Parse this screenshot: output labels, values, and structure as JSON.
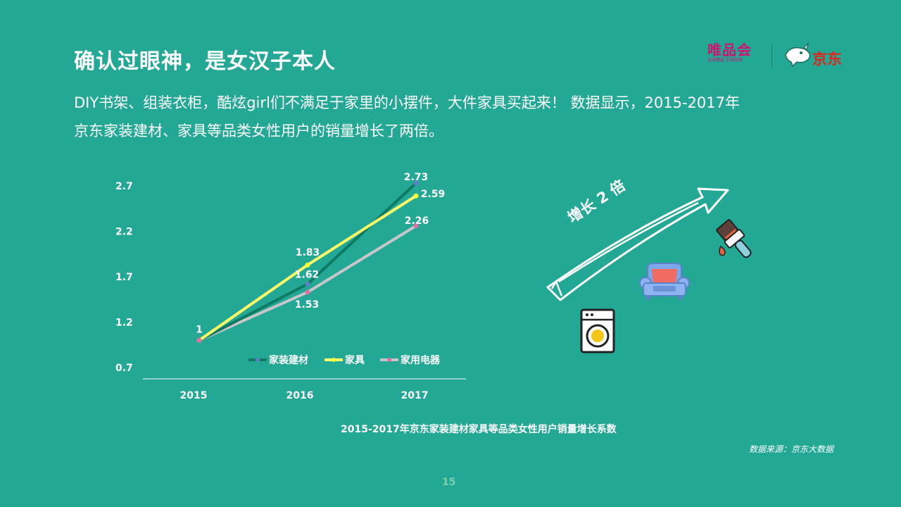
{
  "header": {
    "title": "确认过眼神，是女汉子本人",
    "body_line1": "DIY书架、组装衣柜，酷炫girl们不满足于家里的小摆件，大件家具买起来！ 数据显示，2015-2017年",
    "body_line2": "京东家装建材、家具等品类女性用户的销量增长了两倍。"
  },
  "logos": {
    "vip_name": "唯品会",
    "vip_tagline": "全球精选  正品特卖",
    "jd_name": "京东"
  },
  "illustration": {
    "arrow_label": "增长 2 倍",
    "icons": [
      "washing-machine-icon",
      "sofa-icon",
      "paint-brush-icon"
    ]
  },
  "chart_data": {
    "type": "line",
    "categories": [
      "2015",
      "2016",
      "2017"
    ],
    "series": [
      {
        "name": "家装建材",
        "values": [
          1,
          1.62,
          2.73
        ],
        "color": "#0E7A62"
      },
      {
        "name": "家具",
        "values": [
          1,
          1.83,
          2.59
        ],
        "color": "#FFFF66"
      },
      {
        "name": "家用电器",
        "values": [
          1,
          1.53,
          2.26
        ],
        "color": "#C7C7C7"
      }
    ],
    "y_ticks": [
      "0.7",
      "1.2",
      "1.7",
      "2.2",
      "2.7"
    ],
    "ylim": [
      0.7,
      2.7
    ],
    "grid": false,
    "legend": "bottom-right inside plot",
    "data_labels": [
      {
        "series": 0,
        "point": 0,
        "text": "1"
      },
      {
        "series": 0,
        "point": 1,
        "text": "1.62"
      },
      {
        "series": 0,
        "point": 2,
        "text": "2.73"
      },
      {
        "series": 1,
        "point": 1,
        "text": "1.83"
      },
      {
        "series": 1,
        "point": 2,
        "text": "2.59"
      },
      {
        "series": 2,
        "point": 1,
        "text": "1.53"
      },
      {
        "series": 2,
        "point": 2,
        "text": "2.26"
      }
    ],
    "caption": "2015-2017年京东家装建材家具等品类女性用户销量增长系数"
  },
  "footer": {
    "source": "数据来源：京东大数据",
    "page_number": "15"
  }
}
